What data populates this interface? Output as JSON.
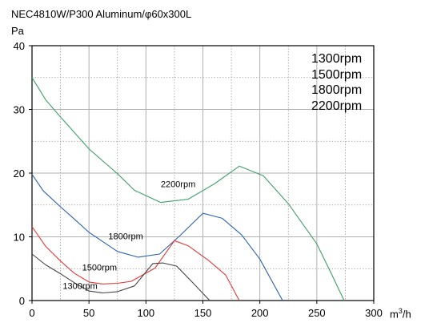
{
  "title": "NEC4810W/P300 Aluminum/φ60x300L",
  "y_unit": "Pa",
  "x_unit": "m",
  "x_unit_sup": "3",
  "x_unit_tail": "/h",
  "legend": [
    "1300rpm",
    "1500rpm",
    "1800rpm",
    "2200rpm"
  ],
  "chart_data": {
    "type": "line",
    "title": "NEC4810W/P300 Aluminum/φ60x300L",
    "xlabel": "m3/h",
    "ylabel": "Pa",
    "xlim": [
      0,
      300
    ],
    "ylim": [
      0,
      40
    ],
    "x_ticks": [
      0,
      50,
      100,
      150,
      200,
      250,
      300
    ],
    "y_ticks": [
      0,
      10,
      20,
      30,
      40
    ],
    "grid": "dotted, vertical every 25, horizontal every 5",
    "series": [
      {
        "name": "2200rpm",
        "color": "#3fa06a",
        "points": [
          [
            0,
            35
          ],
          [
            12,
            31.5
          ],
          [
            25,
            28.8
          ],
          [
            50,
            23.8
          ],
          [
            75,
            19.9
          ],
          [
            90,
            17.3
          ],
          [
            113,
            15.4
          ],
          [
            137,
            15.9
          ],
          [
            160,
            18.3
          ],
          [
            182,
            21.1
          ],
          [
            203,
            19.6
          ],
          [
            225,
            15.2
          ],
          [
            250,
            8.9
          ],
          [
            262,
            4.5
          ],
          [
            274,
            0
          ]
        ]
      },
      {
        "name": "1800rpm",
        "color": "#2a62b0",
        "points": [
          [
            0,
            19.8
          ],
          [
            10,
            17.2
          ],
          [
            25,
            14.7
          ],
          [
            37,
            12.8
          ],
          [
            50,
            10.7
          ],
          [
            75,
            7.7
          ],
          [
            93,
            6.8
          ],
          [
            112,
            7.3
          ],
          [
            130,
            10.2
          ],
          [
            150,
            13.7
          ],
          [
            167,
            12.9
          ],
          [
            184,
            10.3
          ],
          [
            200,
            6.5
          ],
          [
            220,
            0
          ]
        ]
      },
      {
        "name": "1500rpm",
        "color": "#e03b3b",
        "points": [
          [
            0,
            11.6
          ],
          [
            12,
            8.5
          ],
          [
            25,
            6.2
          ],
          [
            37,
            4.3
          ],
          [
            50,
            2.9
          ],
          [
            62,
            2.6
          ],
          [
            75,
            2.7
          ],
          [
            87,
            3.0
          ],
          [
            108,
            5.1
          ],
          [
            125,
            9.4
          ],
          [
            137,
            8.6
          ],
          [
            155,
            6.3
          ],
          [
            170,
            4.0
          ],
          [
            182,
            0
          ]
        ]
      },
      {
        "name": "1300rpm",
        "color": "#444444",
        "points": [
          [
            0,
            7.3
          ],
          [
            12,
            5.6
          ],
          [
            25,
            4.2
          ],
          [
            37,
            2.8
          ],
          [
            50,
            1.5
          ],
          [
            62,
            1.2
          ],
          [
            75,
            1.4
          ],
          [
            90,
            2.3
          ],
          [
            106,
            5.8
          ],
          [
            115,
            5.9
          ],
          [
            127,
            5.4
          ],
          [
            140,
            3.0
          ],
          [
            156,
            0
          ]
        ]
      }
    ],
    "annotations": [
      {
        "text": "2200rpm",
        "series": "2200rpm"
      },
      {
        "text": "1800rpm",
        "series": "1800rpm"
      },
      {
        "text": "1500rpm",
        "series": "1500rpm"
      },
      {
        "text": "1300rpm",
        "series": "1300rpm"
      }
    ]
  }
}
